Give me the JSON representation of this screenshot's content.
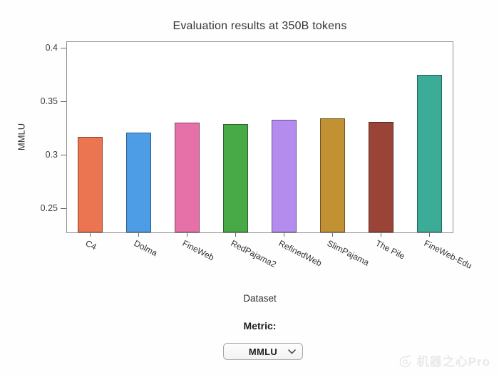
{
  "chart_data": {
    "type": "bar",
    "title": "Evaluation results at 350B tokens",
    "xlabel": "Dataset",
    "ylabel": "MMLU",
    "categories": [
      "C4",
      "Dolma",
      "FineWeb",
      "RedPajama2",
      "RefinedWeb",
      "SlimPajama",
      "The Pile",
      "FineWeb-Edu"
    ],
    "values": [
      0.317,
      0.321,
      0.33,
      0.329,
      0.333,
      0.334,
      0.331,
      0.375
    ],
    "bar_colors": [
      "#ec7551",
      "#4d9de6",
      "#e671a8",
      "#47aa47",
      "#b48cee",
      "#c29133",
      "#9a4438",
      "#3cab97"
    ],
    "bar_border_color": "rgba(0,0,0,0.42)",
    "ylim": [
      0.227,
      0.406
    ],
    "yticks": [
      0.25,
      0.3,
      0.35,
      0.4
    ],
    "ytick_labels": [
      "0.25",
      "0.3",
      "0.35",
      "0.4"
    ],
    "x_tick_angle_deg": 27,
    "grid": false,
    "legend": "none"
  },
  "controls": {
    "metric_label": "Metric:",
    "metric_value": "MMLU"
  },
  "watermark": {
    "text": "机器之心Pro",
    "color": "#e9e9e9"
  }
}
